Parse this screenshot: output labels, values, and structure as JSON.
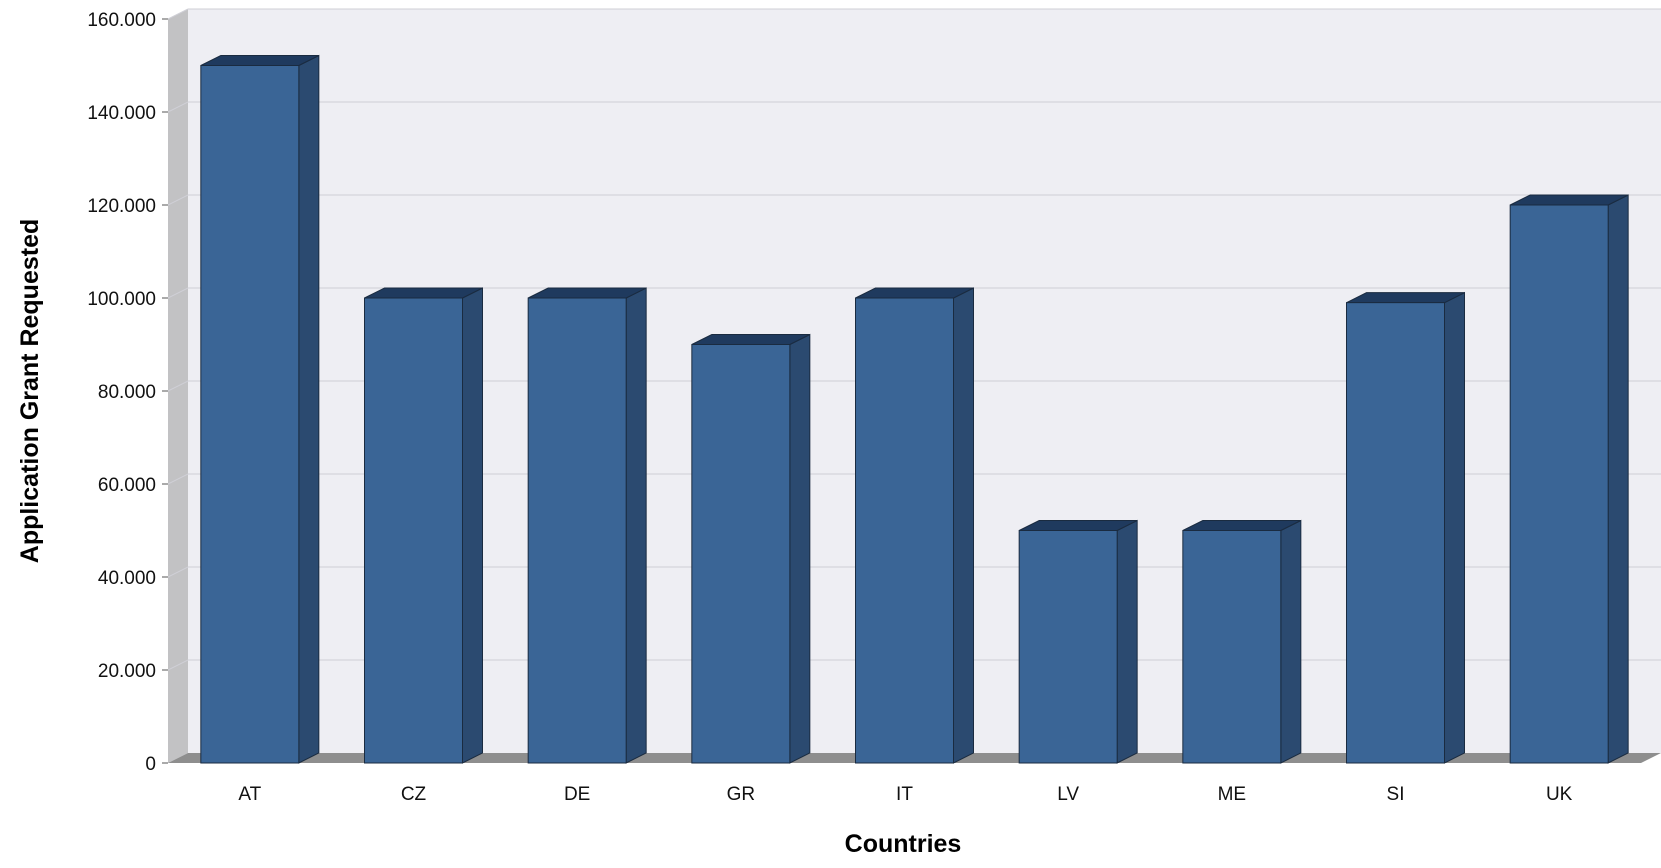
{
  "chart_data": {
    "type": "bar",
    "style": "3d",
    "xlabel": "Countries",
    "ylabel": "Application Grant Requested",
    "categories": [
      "AT",
      "CZ",
      "DE",
      "GR",
      "IT",
      "LV",
      "ME",
      "SI",
      "UK"
    ],
    "values": [
      150000,
      100000,
      100000,
      90000,
      100000,
      50000,
      50000,
      99000,
      120000
    ],
    "ylim": [
      0,
      160000
    ],
    "yticks": [
      0,
      20000,
      40000,
      60000,
      80000,
      100000,
      120000,
      140000,
      160000
    ],
    "ytick_labels": [
      "0",
      "20.000",
      "40.000",
      "60.000",
      "80.000",
      "100.000",
      "120.000",
      "140.000",
      "160.000"
    ],
    "grid": true,
    "legend": "none",
    "colors": {
      "bar_front": "#3a6596",
      "bar_side": "#2b4a70",
      "bar_top": "#1f3a5e",
      "bar_edge": "#1a2b40",
      "plot_background": "#eeeef3",
      "gridline": "#cfcfd6",
      "left_wall": "#c2c2c4",
      "floor": "#8e8e8e"
    }
  }
}
